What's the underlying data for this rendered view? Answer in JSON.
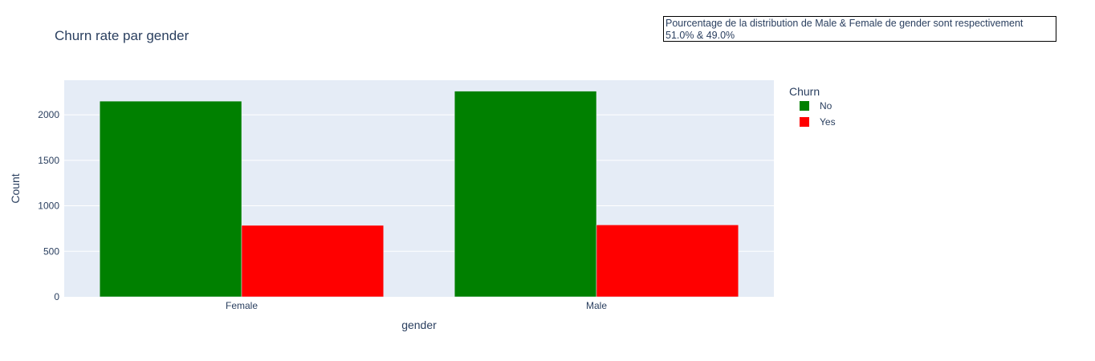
{
  "chart_data": {
    "type": "bar",
    "title": "Churn rate par gender",
    "xlabel": "gender",
    "ylabel": "Count",
    "categories": [
      "Female",
      "Male"
    ],
    "series": [
      {
        "name": "No",
        "color": "#008000",
        "values": [
          2150,
          2260
        ]
      },
      {
        "name": "Yes",
        "color": "#ff0000",
        "values": [
          785,
          790
        ]
      }
    ],
    "ylim": [
      0,
      2380
    ],
    "yticks": [
      0,
      500,
      1000,
      1500,
      2000
    ],
    "grid": true,
    "legend": {
      "title": "Churn",
      "placement": "top-right"
    },
    "annotation": {
      "line1": "Pourcentage de la distribution de Male & Female de gender sont respectivement",
      "line2": "51.0% & 49.0%"
    }
  }
}
